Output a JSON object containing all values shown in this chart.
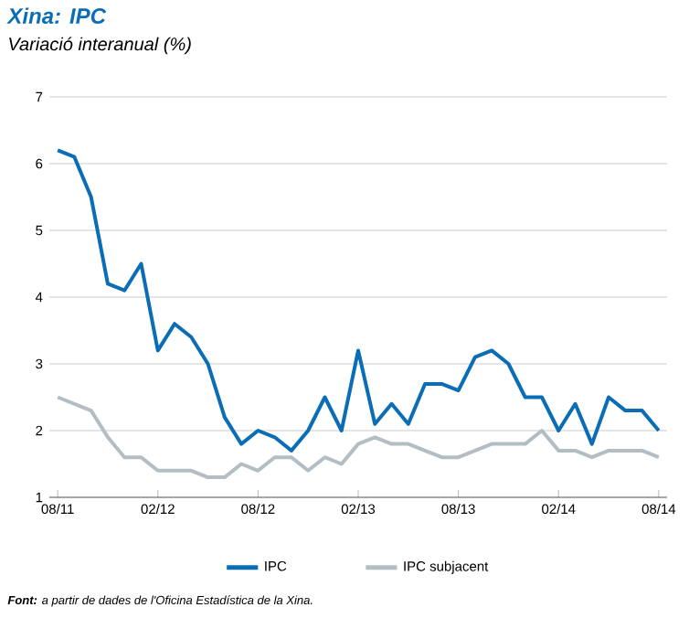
{
  "chart_data": {
    "type": "line",
    "title": "Xina: IPC",
    "subtitle": "Variació interanual (%)",
    "categories": [
      "08/11",
      null,
      null,
      null,
      null,
      null,
      "02/12",
      null,
      null,
      null,
      null,
      null,
      "08/12",
      null,
      null,
      null,
      null,
      null,
      "02/13",
      null,
      null,
      null,
      null,
      null,
      "08/13",
      null,
      null,
      null,
      null,
      null,
      "02/14",
      null,
      null,
      null,
      null,
      null,
      "08/14"
    ],
    "series": [
      {
        "name": "IPC",
        "color": "#0a6db5",
        "values": [
          6.2,
          6.1,
          5.5,
          4.2,
          4.1,
          4.5,
          3.2,
          3.6,
          3.4,
          3.0,
          2.2,
          1.8,
          2.0,
          1.9,
          1.7,
          2.0,
          2.5,
          2.0,
          3.2,
          2.1,
          2.4,
          2.1,
          2.7,
          2.7,
          2.6,
          3.1,
          3.2,
          3.0,
          2.5,
          2.5,
          2.0,
          2.4,
          1.8,
          2.5,
          2.3,
          2.3,
          2.0
        ]
      },
      {
        "name": "IPC subjacent",
        "color": "#b2bec3",
        "values": [
          2.5,
          2.4,
          2.3,
          1.9,
          1.6,
          1.6,
          1.4,
          1.4,
          1.4,
          1.3,
          1.3,
          1.5,
          1.4,
          1.6,
          1.6,
          1.4,
          1.6,
          1.5,
          1.8,
          1.9,
          1.8,
          1.8,
          1.7,
          1.6,
          1.6,
          1.7,
          1.8,
          1.8,
          1.8,
          2.0,
          1.7,
          1.7,
          1.6,
          1.7,
          1.7,
          1.7,
          1.6
        ]
      }
    ],
    "ylim": [
      1,
      7
    ],
    "yticks": [
      1,
      2,
      3,
      4,
      5,
      6,
      7
    ],
    "grid": "y",
    "legend": "bottom",
    "line_style": "solid",
    "annotations": [
      "**Font:** a partir de dades de l'Oficina Estadística de la Xina."
    ]
  }
}
